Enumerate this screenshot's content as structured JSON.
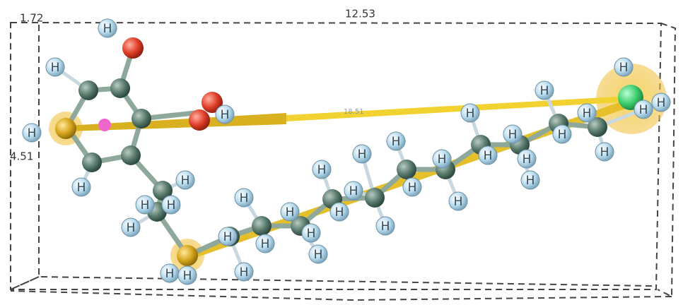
{
  "labels": {
    "corner": "1.72",
    "width": "12.53",
    "height": "4.51",
    "distance": "18.51"
  },
  "atoms": {
    "hydrogen": [
      "H",
      "H",
      "H",
      "H",
      "H",
      "H",
      "H",
      "H",
      "H",
      "H",
      "H",
      "H",
      "H",
      "H",
      "H",
      "H",
      "H",
      "H",
      "H",
      "H",
      "H",
      "H",
      "H",
      "H",
      "H",
      "H",
      "H",
      "H",
      "H",
      "H",
      "H",
      "H",
      "H",
      "H",
      "H",
      "H",
      "H",
      "H",
      "H"
    ]
  }
}
